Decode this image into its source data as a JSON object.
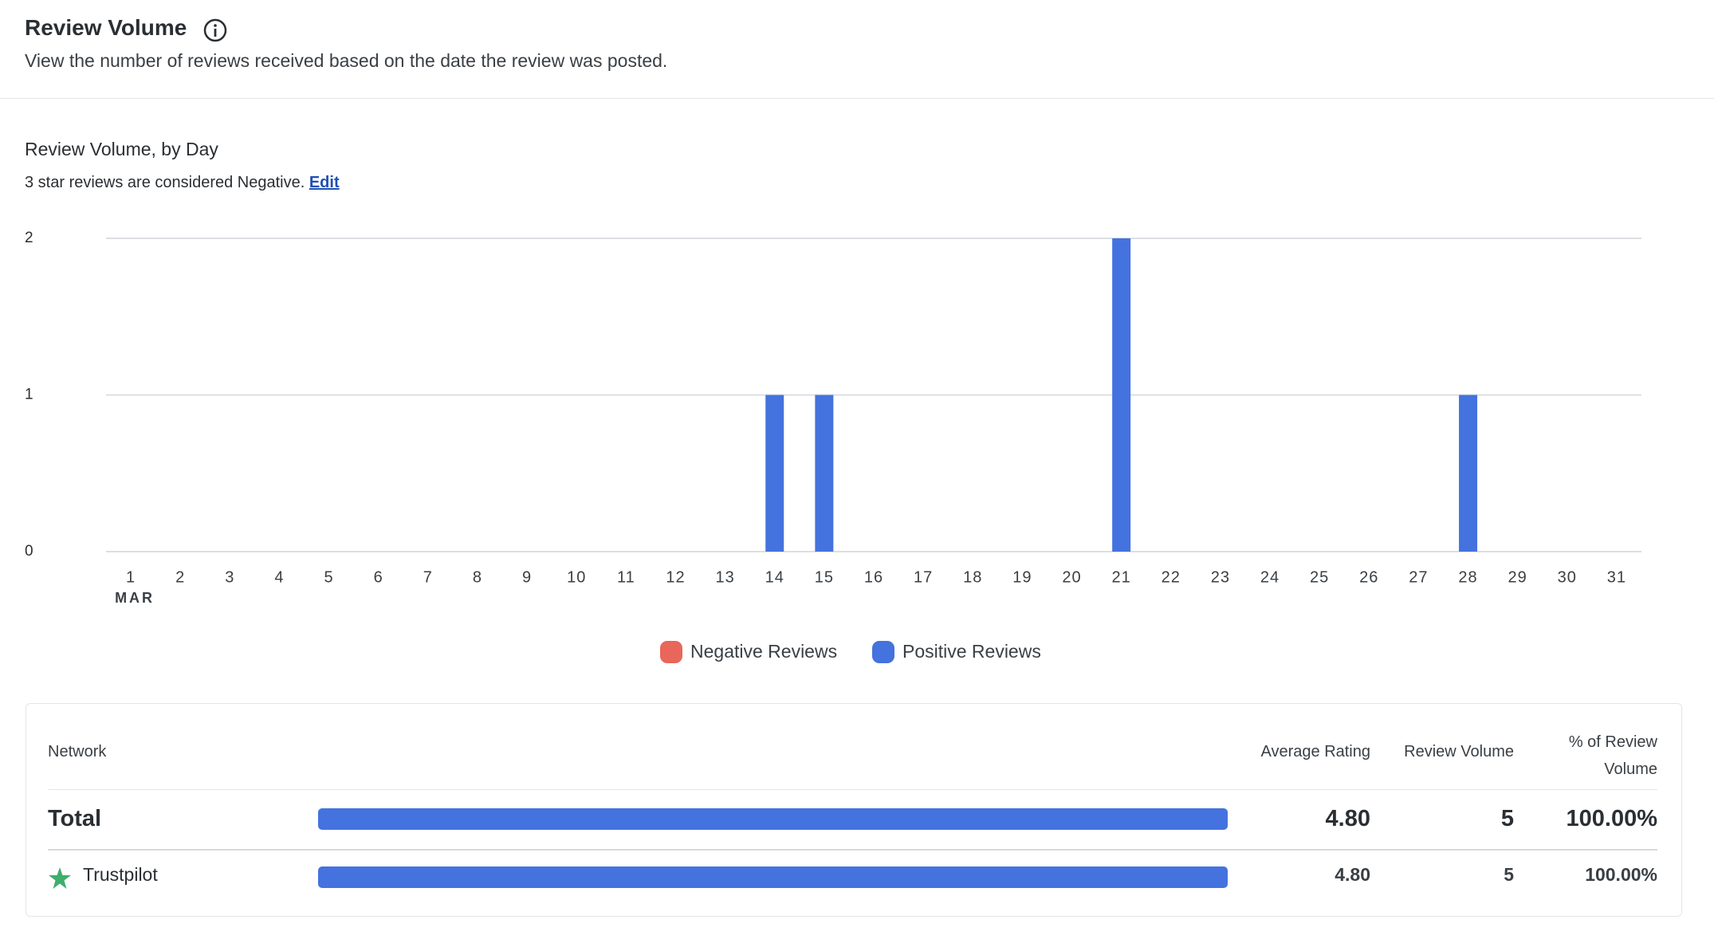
{
  "header": {
    "title": "Review Volume",
    "subtitle": "View the number of reviews received based on the date the review was posted."
  },
  "chart_data": {
    "type": "bar",
    "stacked": true,
    "title": "Review Volume, by Day",
    "note": "3 star reviews are considered Negative.",
    "note_link": "Edit",
    "categories": [
      "1",
      "2",
      "3",
      "4",
      "5",
      "6",
      "7",
      "8",
      "9",
      "10",
      "11",
      "12",
      "13",
      "14",
      "15",
      "16",
      "17",
      "18",
      "19",
      "20",
      "21",
      "22",
      "23",
      "24",
      "25",
      "26",
      "27",
      "28",
      "29",
      "30",
      "31"
    ],
    "month_label": "MAR",
    "series": [
      {
        "name": "Negative Reviews",
        "color": "#e8665a",
        "values": [
          0,
          0,
          0,
          0,
          0,
          0,
          0,
          0,
          0,
          0,
          0,
          0,
          0,
          0,
          0,
          0,
          0,
          0,
          0,
          0,
          0,
          0,
          0,
          0,
          0,
          0,
          0,
          0,
          0,
          0,
          0
        ]
      },
      {
        "name": "Positive Reviews",
        "color": "#4472de",
        "values": [
          0,
          0,
          0,
          0,
          0,
          0,
          0,
          0,
          0,
          0,
          0,
          0,
          0,
          1,
          1,
          0,
          0,
          0,
          0,
          0,
          2,
          0,
          0,
          0,
          0,
          0,
          0,
          1,
          0,
          0,
          0
        ]
      }
    ],
    "ylim": [
      0,
      2
    ],
    "yticks": [
      0,
      1,
      2
    ],
    "grid": true,
    "legend": "bottom"
  },
  "table": {
    "headers": [
      "Network",
      "Average Rating",
      "Review Volume",
      "% of Review Volume"
    ],
    "rows": [
      {
        "network": "Total",
        "average_rating": "4.80",
        "review_volume": "5",
        "percent": "100.00%"
      },
      {
        "network": "Trustpilot",
        "average_rating": "4.80",
        "review_volume": "5",
        "percent": "100.00%"
      }
    ]
  }
}
